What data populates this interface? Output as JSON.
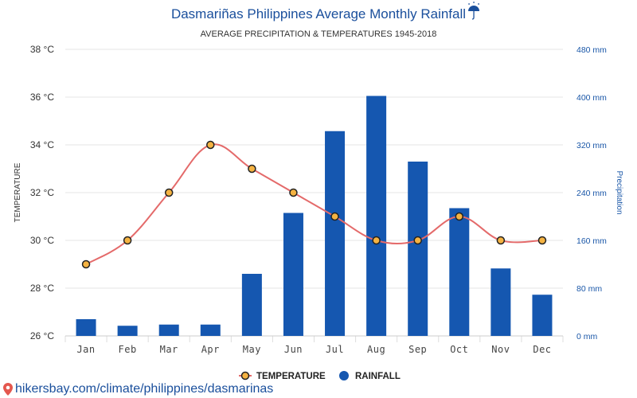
{
  "title": "Dasmariñas Philippines Average Monthly Rainfall",
  "title_icon": "umbrella-icon",
  "subtitle": "AVERAGE PRECIPITATION & TEMPERATURES 1945-2018",
  "watermark": "hikersbay.com/climate/philippines/dasmarinas",
  "colors": {
    "title": "#1a4f9c",
    "bar": "#1557b0",
    "line": "#e46a6a",
    "marker_fill": "#f5b342",
    "right_axis": "#1a57a8"
  },
  "chart_data": {
    "type": "bar",
    "categories": [
      "Jan",
      "Feb",
      "Mar",
      "Apr",
      "May",
      "Jun",
      "Jul",
      "Aug",
      "Sep",
      "Oct",
      "Nov",
      "Dec"
    ],
    "series": [
      {
        "name": "TEMPERATURE",
        "type": "line",
        "axis": "left",
        "unit": "°C",
        "values": [
          29,
          30,
          32,
          34,
          33,
          32,
          31,
          30,
          30,
          31,
          30,
          30
        ]
      },
      {
        "name": "RAINFALL",
        "type": "bar",
        "axis": "right",
        "unit": "mm",
        "values": [
          28,
          17,
          19,
          19,
          104,
          206,
          343,
          402,
          292,
          214,
          113,
          69
        ]
      }
    ],
    "left_axis": {
      "label": "TEMPERATURE",
      "range": [
        26,
        38
      ],
      "ticks": [
        "26 °C",
        "28 °C",
        "30 °C",
        "32 °C",
        "34 °C",
        "36 °C",
        "38 °C"
      ]
    },
    "right_axis": {
      "label": "Precipitation",
      "range": [
        0,
        480
      ],
      "ticks": [
        "0 mm",
        "80 mm",
        "160 mm",
        "240 mm",
        "320 mm",
        "400 mm",
        "480 mm"
      ]
    },
    "grid": true,
    "legend": "bottom-center"
  }
}
